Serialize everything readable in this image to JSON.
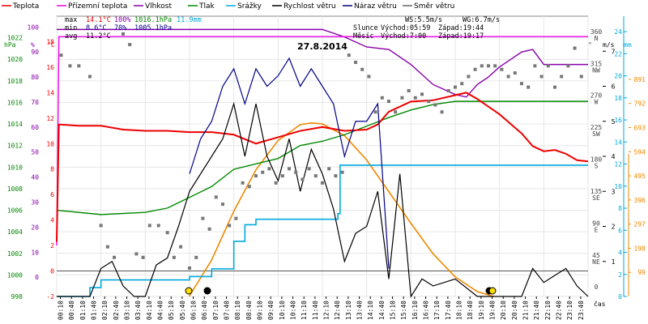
{
  "chart_data": {
    "type": "line",
    "title": "27.8.2014",
    "xlabel": "čas",
    "legend": [
      {
        "name": "Teplota",
        "color": "#ee0000"
      },
      {
        "name": "Přízemní teplota",
        "color": "#ee00ee"
      },
      {
        "name": "Vlhkost",
        "color": "#8800aa"
      },
      {
        "name": "Tlak",
        "color": "#008800"
      },
      {
        "name": "Srážky",
        "color": "#00aadd"
      },
      {
        "name": "Rychlost větru",
        "color": "#000000"
      },
      {
        "name": "Náraz větru",
        "color": "#000088"
      },
      {
        "name": "Směr větru",
        "color": "#666666"
      }
    ],
    "stats": {
      "max": {
        "label": "max",
        "temp": "14.1°C",
        "hum": "100%",
        "press": "1016.1hPa",
        "rain": "11.9mm"
      },
      "min": {
        "label": "min",
        "temp": "8.6°C",
        "hum": "70%",
        "press": "1005.1hPa"
      },
      "avg": {
        "label": "avg",
        "temp": "11.2°C"
      }
    },
    "wind_info": {
      "ws": "WS:5.5m/s",
      "wg": "WG:6.7m/s"
    },
    "sun_info": {
      "label": "Slunce",
      "rise": "Východ:05:59",
      "set": "Západ:19:44"
    },
    "moon_info": {
      "label": "Měsíc",
      "rise": "Východ:7:00",
      "set": "Západ:19:17"
    },
    "axes": {
      "hpa": {
        "unit": "hPa",
        "ticks": [
          "998",
          "1000",
          "1002",
          "1004",
          "1006",
          "1008",
          "1010",
          "1012",
          "1014",
          "1016",
          "1018",
          "1020",
          "1022"
        ],
        "range": [
          998,
          1024
        ]
      },
      "percent": {
        "unit": "%",
        "ticks": [
          "0",
          "10",
          "20",
          "30",
          "40",
          "50",
          "60",
          "70",
          "80",
          "90",
          "100"
        ],
        "range": [
          0,
          100
        ]
      },
      "celsius": {
        "unit": "°C",
        "ticks": [
          "-2",
          "0",
          "2",
          "4",
          "6",
          "8",
          "10",
          "12",
          "14",
          "16",
          "18"
        ],
        "range": [
          -2,
          20
        ]
      },
      "direction": {
        "unit": "°",
        "ticks": [
          {
            "deg": "0",
            "dir": ""
          },
          {
            "deg": "45",
            "dir": "NE"
          },
          {
            "deg": "90",
            "dir": "E"
          },
          {
            "deg": "135",
            "dir": "SE"
          },
          {
            "deg": "180",
            "dir": "S"
          },
          {
            "deg": "225",
            "dir": "SW"
          },
          {
            "deg": "270",
            "dir": "W"
          },
          {
            "deg": "315",
            "dir": "NW"
          },
          {
            "deg": "360",
            "dir": "N"
          }
        ]
      },
      "ms": {
        "unit": "m/s",
        "ticks": [
          "1",
          "2",
          "3",
          "4",
          "5",
          "6",
          "7"
        ],
        "range": [
          0,
          8
        ]
      },
      "rain": {
        "unit": "mm",
        "ticks": [
          "0",
          "2",
          "4",
          "6",
          "8",
          "10",
          "12",
          "14",
          "16",
          "18",
          "20",
          "22",
          "24"
        ],
        "range": [
          0,
          24
        ]
      },
      "sun": {
        "ticks": [
          "99",
          "198",
          "297",
          "396",
          "495",
          "594",
          "693",
          "792",
          "891"
        ],
        "range": [
          0,
          900
        ]
      },
      "time": [
        "00:10",
        "00:40",
        "01:10",
        "01:40",
        "02:10",
        "02:40",
        "03:10",
        "03:40",
        "04:10",
        "04:40",
        "05:10",
        "05:40",
        "06:10",
        "06:40",
        "07:10",
        "07:40",
        "08:10",
        "08:40",
        "09:10",
        "09:40",
        "10:10",
        "10:40",
        "11:10",
        "11:40",
        "12:10",
        "12:40",
        "13:10",
        "13:40",
        "14:10",
        "14:40",
        "15:10",
        "15:40",
        "16:10",
        "16:40",
        "17:10",
        "17:40",
        "18:10",
        "18:40",
        "19:10",
        "19:40",
        "20:10",
        "20:40",
        "21:10",
        "21:40",
        "22:10",
        "22:40",
        "23:10",
        "23:40"
      ]
    },
    "series": {
      "temperature": {
        "name": "Teplota",
        "unit": "°C",
        "points": [
          [
            0,
            2.3
          ],
          [
            0.1,
            11.5
          ],
          [
            1,
            11.4
          ],
          [
            2,
            11.4
          ],
          [
            3,
            11.1
          ],
          [
            4,
            11.0
          ],
          [
            5,
            11.0
          ],
          [
            6,
            10.9
          ],
          [
            7,
            10.9
          ],
          [
            8,
            10.7
          ],
          [
            9,
            10.0
          ],
          [
            10,
            10.5
          ],
          [
            11,
            11.0
          ],
          [
            12,
            11.3
          ],
          [
            13,
            11.0
          ],
          [
            14,
            11.1
          ],
          [
            14.5,
            11.5
          ],
          [
            15,
            12.5
          ],
          [
            16,
            13.3
          ],
          [
            17,
            13.4
          ],
          [
            18,
            13.8
          ],
          [
            18.5,
            14.0
          ],
          [
            19,
            13.5
          ],
          [
            20,
            12.3
          ],
          [
            21,
            10.8
          ],
          [
            21.5,
            9.8
          ],
          [
            22,
            9.4
          ],
          [
            22.5,
            9.5
          ],
          [
            23,
            9.2
          ],
          [
            23.5,
            8.7
          ],
          [
            24,
            8.6
          ]
        ]
      },
      "ground_temperature": {
        "name": "Přízemní teplota",
        "unit": "°C",
        "points": [
          [
            0,
            2.0
          ],
          [
            0.1,
            18.4
          ],
          [
            12,
            18.4
          ],
          [
            24,
            18.4
          ]
        ]
      },
      "humidity": {
        "name": "Vlhkost",
        "unit": "%",
        "points": [
          [
            0,
            99
          ],
          [
            12,
            99
          ],
          [
            13,
            96
          ],
          [
            14,
            92
          ],
          [
            15,
            91
          ],
          [
            16,
            85
          ],
          [
            17,
            77
          ],
          [
            17.5,
            75
          ],
          [
            18,
            73
          ],
          [
            18.5,
            72
          ],
          [
            19,
            77
          ],
          [
            19.5,
            80
          ],
          [
            20,
            84
          ],
          [
            20.5,
            87
          ],
          [
            21,
            90
          ],
          [
            21.5,
            91
          ],
          [
            22,
            85
          ],
          [
            23,
            85
          ],
          [
            24,
            85
          ]
        ]
      },
      "pressure": {
        "name": "Tlak",
        "unit": "hPa",
        "points": [
          [
            0,
            1006.0
          ],
          [
            2,
            1005.6
          ],
          [
            4,
            1005.8
          ],
          [
            5,
            1006.2
          ],
          [
            6,
            1007.2
          ],
          [
            7,
            1008.2
          ],
          [
            8,
            1009.8
          ],
          [
            9,
            1010.3
          ],
          [
            10,
            1010.8
          ],
          [
            11,
            1012.0
          ],
          [
            12,
            1012.4
          ],
          [
            13,
            1013.0
          ],
          [
            14,
            1013.8
          ],
          [
            15,
            1014.6
          ],
          [
            16,
            1015.3
          ],
          [
            17,
            1015.8
          ],
          [
            18,
            1016.1
          ],
          [
            24,
            1016.1
          ]
        ]
      },
      "rain": {
        "name": "Srážky",
        "unit": "mm",
        "points": [
          [
            0,
            0
          ],
          [
            1,
            0
          ],
          [
            1.5,
            0.8
          ],
          [
            2,
            1.5
          ],
          [
            3,
            1.5
          ],
          [
            4,
            1.5
          ],
          [
            5,
            1.5
          ],
          [
            6,
            1.8
          ],
          [
            7,
            2.5
          ],
          [
            8,
            5.0
          ],
          [
            8.5,
            6.5
          ],
          [
            9,
            7.0
          ],
          [
            10,
            7.0
          ],
          [
            11,
            7.0
          ],
          [
            12,
            7.0
          ],
          [
            12.7,
            7.5
          ],
          [
            12.8,
            11.9
          ],
          [
            24,
            11.9
          ]
        ]
      },
      "wind_speed": {
        "name": "Rychlost větru",
        "unit": "m/s",
        "points": [
          [
            0,
            0
          ],
          [
            1.5,
            0
          ],
          [
            2,
            0.8
          ],
          [
            2.5,
            1.0
          ],
          [
            3,
            0.3
          ],
          [
            3.5,
            0
          ],
          [
            4,
            0
          ],
          [
            4.5,
            0.9
          ],
          [
            5,
            1.1
          ],
          [
            5.5,
            2.0
          ],
          [
            6,
            3.0
          ],
          [
            6.5,
            3.5
          ],
          [
            7,
            4.0
          ],
          [
            7.5,
            4.5
          ],
          [
            8,
            5.5
          ],
          [
            8.5,
            4.0
          ],
          [
            9,
            5.5
          ],
          [
            9.5,
            4.0
          ],
          [
            10,
            3.3
          ],
          [
            10.5,
            4.5
          ],
          [
            11,
            3.0
          ],
          [
            11.5,
            4.2
          ],
          [
            12,
            3.5
          ],
          [
            12.5,
            2.5
          ],
          [
            13,
            1.0
          ],
          [
            13.5,
            1.8
          ],
          [
            14,
            2.0
          ],
          [
            14.5,
            3.0
          ],
          [
            15,
            0.5
          ],
          [
            15.5,
            3.5
          ],
          [
            16,
            0
          ],
          [
            16.5,
            0.5
          ],
          [
            17,
            0.3
          ],
          [
            18,
            0.5
          ],
          [
            19,
            0
          ],
          [
            20,
            0
          ],
          [
            21,
            0
          ],
          [
            21.5,
            0.8
          ],
          [
            22,
            0.4
          ],
          [
            22.5,
            0.6
          ],
          [
            23,
            0.8
          ],
          [
            23.5,
            0.3
          ],
          [
            24,
            0
          ]
        ]
      },
      "wind_gust": {
        "name": "Náraz větru",
        "unit": "m/s",
        "points": [
          [
            6,
            3.5
          ],
          [
            6.5,
            4.5
          ],
          [
            7,
            5.0
          ],
          [
            7.5,
            6.0
          ],
          [
            8,
            6.5
          ],
          [
            8.5,
            5.5
          ],
          [
            9,
            6.5
          ],
          [
            9.5,
            6.0
          ],
          [
            10,
            6.3
          ],
          [
            10.5,
            6.8
          ],
          [
            11,
            6.0
          ],
          [
            11.5,
            6.5
          ],
          [
            12,
            6.0
          ],
          [
            12.5,
            5.5
          ],
          [
            13,
            4.0
          ],
          [
            13.5,
            5.0
          ],
          [
            14,
            5.0
          ],
          [
            14.5,
            5.5
          ],
          [
            15,
            0.8
          ]
        ]
      },
      "solar": {
        "name": "Slunce",
        "unit": "W/m²",
        "points": [
          [
            5.98,
            0
          ],
          [
            7,
            150
          ],
          [
            8,
            350
          ],
          [
            9,
            520
          ],
          [
            10,
            640
          ],
          [
            11,
            705
          ],
          [
            11.5,
            712
          ],
          [
            12,
            708
          ],
          [
            13,
            660
          ],
          [
            14,
            560
          ],
          [
            15,
            430
          ],
          [
            16,
            300
          ],
          [
            17,
            175
          ],
          [
            18,
            80
          ],
          [
            19,
            20
          ],
          [
            19.73,
            0
          ]
        ]
      },
      "wind_direction": {
        "name": "Směr větru",
        "unit": "°",
        "points": [
          [
            0.2,
            330
          ],
          [
            0.6,
            315
          ],
          [
            1.0,
            315
          ],
          [
            1.5,
            300
          ],
          [
            2.0,
            90
          ],
          [
            2.3,
            60
          ],
          [
            2.6,
            45
          ],
          [
            3.0,
            360
          ],
          [
            3.3,
            345
          ],
          [
            3.6,
            50
          ],
          [
            3.9,
            45
          ],
          [
            4.2,
            90
          ],
          [
            4.6,
            90
          ],
          [
            5.0,
            80
          ],
          [
            5.3,
            45
          ],
          [
            5.6,
            60
          ],
          [
            6.0,
            30
          ],
          [
            6.3,
            45
          ],
          [
            6.6,
            100
          ],
          [
            6.9,
            85
          ],
          [
            7.2,
            130
          ],
          [
            7.5,
            120
          ],
          [
            7.8,
            90
          ],
          [
            8.1,
            100
          ],
          [
            8.4,
            150
          ],
          [
            8.7,
            145
          ],
          [
            9.0,
            160
          ],
          [
            9.3,
            165
          ],
          [
            9.6,
            170
          ],
          [
            9.9,
            150
          ],
          [
            10.2,
            160
          ],
          [
            10.5,
            170
          ],
          [
            10.8,
            165
          ],
          [
            11.1,
            155
          ],
          [
            11.4,
            170
          ],
          [
            11.7,
            160
          ],
          [
            12.0,
            150
          ],
          [
            12.3,
            170
          ],
          [
            12.6,
            160
          ],
          [
            12.9,
            165
          ],
          [
            13.2,
            330
          ],
          [
            13.5,
            320
          ],
          [
            13.8,
            310
          ],
          [
            14.1,
            300
          ],
          [
            14.4,
            250
          ],
          [
            14.7,
            270
          ],
          [
            15.0,
            265
          ],
          [
            15.3,
            250
          ],
          [
            15.6,
            270
          ],
          [
            15.9,
            280
          ],
          [
            16.2,
            270
          ],
          [
            16.5,
            275
          ],
          [
            16.8,
            265
          ],
          [
            17.1,
            260
          ],
          [
            17.4,
            250
          ],
          [
            17.7,
            280
          ],
          [
            18.0,
            285
          ],
          [
            18.3,
            290
          ],
          [
            18.6,
            300
          ],
          [
            18.9,
            310
          ],
          [
            19.2,
            315
          ],
          [
            19.5,
            315
          ],
          [
            19.8,
            315
          ],
          [
            20.1,
            310
          ],
          [
            20.4,
            300
          ],
          [
            20.7,
            305
          ],
          [
            21.0,
            290
          ],
          [
            21.3,
            285
          ],
          [
            21.6,
            315
          ],
          [
            21.9,
            300
          ],
          [
            22.2,
            315
          ],
          [
            22.5,
            285
          ],
          [
            22.8,
            300
          ],
          [
            23.1,
            315
          ],
          [
            23.4,
            340
          ],
          [
            23.7,
            300
          ]
        ]
      }
    }
  }
}
